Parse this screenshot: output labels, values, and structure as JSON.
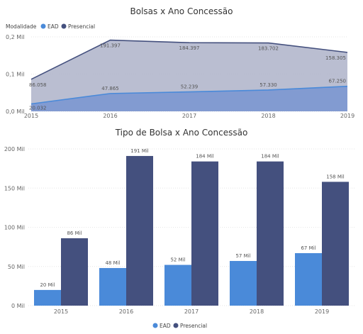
{
  "chart_data": [
    {
      "type": "area",
      "title": "Bolsas x Ano Concessão",
      "legend_title": "Modalidade",
      "legend_position": "top-left",
      "categories": [
        "2015",
        "2016",
        "2017",
        "2018",
        "2019"
      ],
      "ylim": [
        0,
        0.2
      ],
      "y_ticks": [
        "0,0 Mil",
        "0,1 Mil",
        "0,2 Mil"
      ],
      "series": [
        {
          "name": "EAD",
          "values": [
            0.020032,
            0.047865,
            0.052239,
            0.05733,
            0.06725
          ],
          "labels": [
            "20.032",
            "47.865",
            "52.239",
            "57.330",
            "67.250"
          ]
        },
        {
          "name": "Presencial",
          "values": [
            0.086058,
            0.191397,
            0.184397,
            0.183702,
            0.158305
          ],
          "labels": [
            "86.058",
            "191.397",
            "184.397",
            "183.702",
            "158.305"
          ]
        }
      ],
      "colors": {
        "EAD": "#4a8ad9",
        "Presencial": "#44507e"
      },
      "grid": true
    },
    {
      "type": "bar",
      "title": "Tipo de Bolsa x Ano Concessão",
      "legend_position": "bottom-center",
      "categories": [
        "2015",
        "2016",
        "2017",
        "2018",
        "2019"
      ],
      "ylim": [
        0,
        200
      ],
      "y_ticks": [
        "0 Mil",
        "50 Mil",
        "100 Mil",
        "150 Mil",
        "200 Mil"
      ],
      "y_tick_values": [
        0,
        50,
        100,
        150,
        200
      ],
      "series": [
        {
          "name": "EAD",
          "values": [
            20,
            48,
            52,
            57,
            67
          ],
          "labels": [
            "20 Mil",
            "48 Mil",
            "52 Mil",
            "57 Mil",
            "67 Mil"
          ]
        },
        {
          "name": "Presencial",
          "values": [
            86,
            191,
            184,
            184,
            158
          ],
          "labels": [
            "86 Mil",
            "191 Mil",
            "184 Mil",
            "184 Mil",
            "158 Mil"
          ]
        }
      ],
      "colors": {
        "EAD": "#4a8ad9",
        "Presencial": "#44507e"
      },
      "grid": true
    }
  ]
}
